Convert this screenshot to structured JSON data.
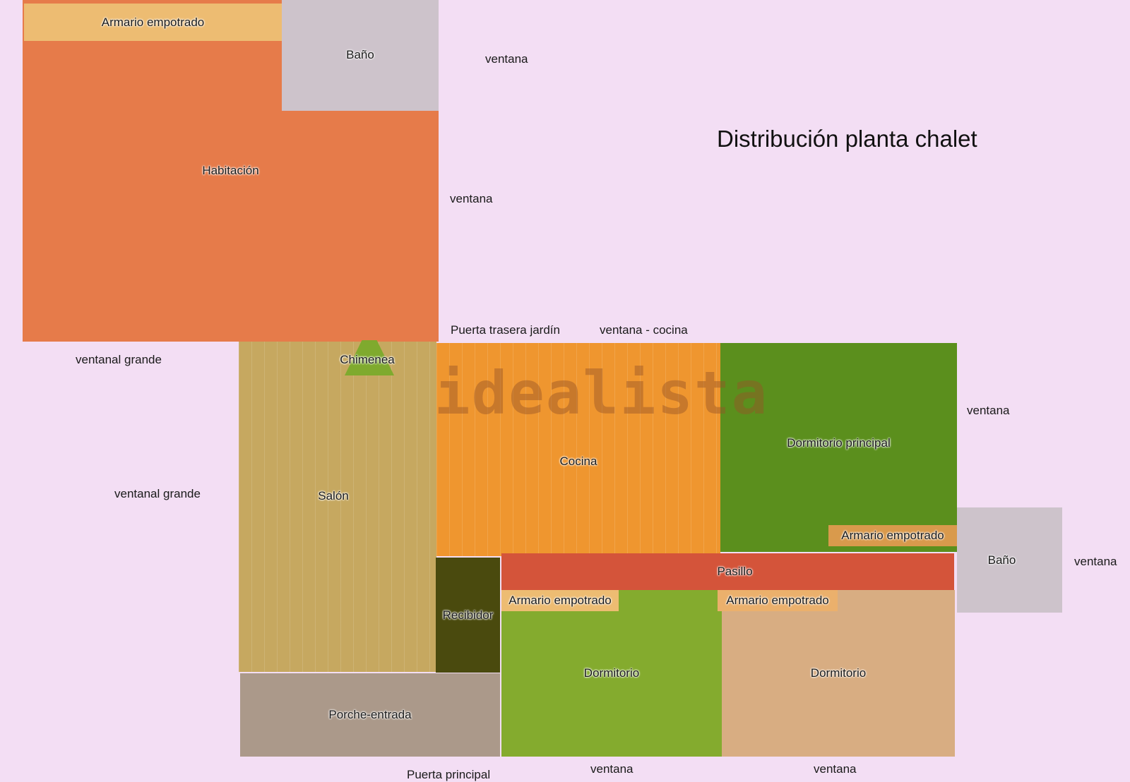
{
  "title": "Distribución planta chalet",
  "watermark": "idealista",
  "colors": {
    "background": "#f3def4",
    "habitacion": "#e67b4a",
    "armario": "#edbc72",
    "bano": "#cdc3cb",
    "salon": "#c6a860",
    "cocina": "#ef962f",
    "dormitorio_principal": "#5b8f1d",
    "pasillo": "#d4543a",
    "recibidor": "#4a4a0e",
    "dormitorio_verde": "#84ab2e",
    "dormitorio_beige": "#d8ad82",
    "porche": "#ab998a",
    "chimenea": "#7faa2e"
  },
  "rooms": {
    "armario_top": "Armario empotrado",
    "bano_top": "Baño",
    "habitacion": "Habitación",
    "chimenea": "Chimenea",
    "salon": "Salón",
    "cocina": "Cocina",
    "dormitorio_principal": "Dormitorio principal",
    "armario_principal": "Armario empotrado",
    "bano_right": "Baño",
    "pasillo": "Pasillo",
    "recibidor": "Recibidor",
    "armario_dormitorio_1": "Armario empotrado",
    "armario_dormitorio_2": "Armario empotrado",
    "dormitorio_1": "Dormitorio",
    "dormitorio_2": "Dormitorio",
    "porche": "Porche-entrada"
  },
  "annotations": {
    "ventana_top": "ventana",
    "ventana_habitacion": "ventana",
    "puerta_trasera": "Puerta trasera jardín",
    "ventana_cocina": "ventana - cocina",
    "ventanal_1": "ventanal grande",
    "ventanal_2": "ventanal grande",
    "ventana_principal": "ventana",
    "ventana_bano": "ventana",
    "puerta_principal": "Puerta principal",
    "ventana_bottom_1": "ventana",
    "ventana_bottom_2": "ventana"
  }
}
